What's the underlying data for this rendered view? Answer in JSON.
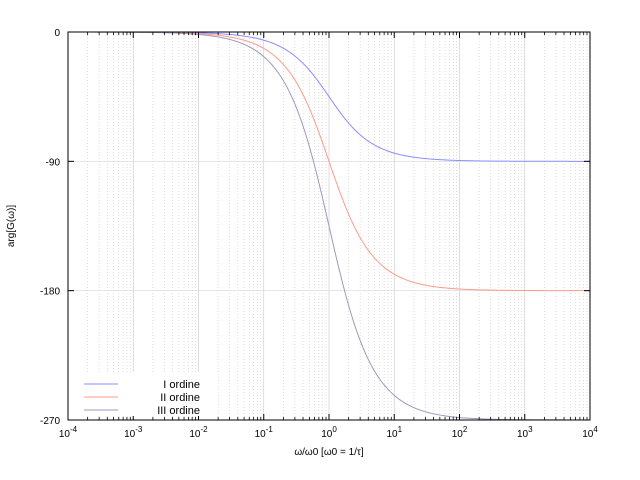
{
  "chart_data": {
    "type": "line",
    "title": "",
    "xlabel": "ω/ω0 [ω0 = 1/τ]",
    "ylabel": "arg[G(ω)]",
    "x_scale": "log",
    "xlim": [
      0.0001,
      10000
    ],
    "ylim": [
      -270,
      0
    ],
    "x_ticks": [
      {
        "base": "10",
        "exp": "-4"
      },
      {
        "base": "10",
        "exp": "-3"
      },
      {
        "base": "10",
        "exp": "-2"
      },
      {
        "base": "10",
        "exp": "-1"
      },
      {
        "base": "10",
        "exp": "0"
      },
      {
        "base": "10",
        "exp": "1"
      },
      {
        "base": "10",
        "exp": "2"
      },
      {
        "base": "10",
        "exp": "3"
      },
      {
        "base": "10",
        "exp": "4"
      }
    ],
    "y_ticks": [
      "0",
      "-90",
      "-180",
      "-270"
    ],
    "grid": true,
    "legend_position": "bottom-left",
    "series": [
      {
        "name": "I ordine",
        "order": 1,
        "color": "#8c8cff",
        "x": [
          0.0001,
          0.001,
          0.01,
          0.1,
          0.3,
          1,
          3,
          10,
          100,
          1000,
          10000
        ],
        "values": [
          0,
          -0.06,
          -0.6,
          -5.7,
          -16.7,
          -45,
          -71.6,
          -84.3,
          -89.4,
          -89.9,
          -90
        ]
      },
      {
        "name": "II ordine",
        "order": 2,
        "color": "#ff9a8c",
        "x": [
          0.0001,
          0.001,
          0.01,
          0.1,
          0.3,
          1,
          3,
          10,
          100,
          1000,
          10000
        ],
        "values": [
          0,
          -0.11,
          -1.1,
          -11.4,
          -33.4,
          -90,
          -143.1,
          -168.6,
          -178.9,
          -179.9,
          -180
        ]
      },
      {
        "name": "III ordine",
        "order": 3,
        "color": "#9a9aba",
        "x": [
          0.0001,
          0.001,
          0.01,
          0.1,
          0.3,
          1,
          3,
          10,
          100,
          1000,
          10000
        ],
        "values": [
          0,
          -0.17,
          -1.7,
          -17.1,
          -50.1,
          -135,
          -214.7,
          -252.9,
          -268.3,
          -269.8,
          -270
        ]
      }
    ]
  }
}
